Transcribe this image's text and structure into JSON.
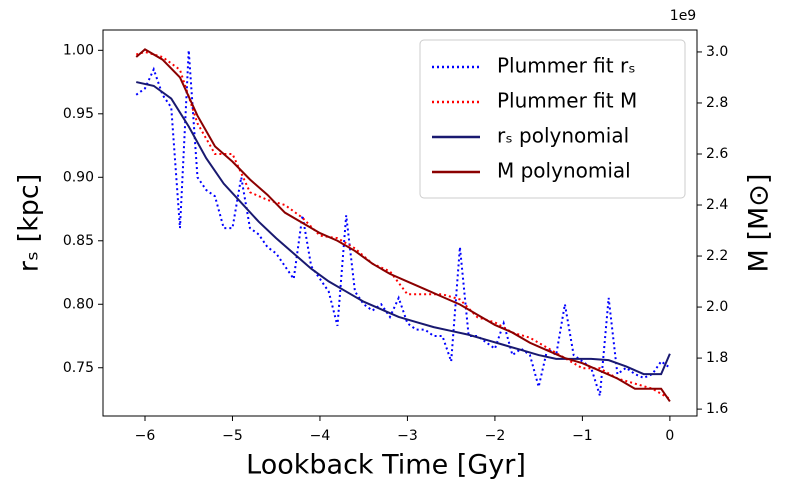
{
  "chart_data": {
    "type": "line",
    "xlabel": "Lookback Time [Gyr]",
    "ylabel": "rₛ [kpc]",
    "y2label": "M [M⊙]",
    "y2offset": "1e9",
    "xlim": [
      -6.48,
      0.31
    ],
    "ylim": [
      0.712,
      1.016
    ],
    "y2lim": [
      1.573,
      3.086
    ],
    "xticks": [
      {
        "value": -6,
        "label": "−6"
      },
      {
        "value": -5,
        "label": "−5"
      },
      {
        "value": -4,
        "label": "−4"
      },
      {
        "value": -3,
        "label": "−3"
      },
      {
        "value": -2,
        "label": "−2"
      },
      {
        "value": -1,
        "label": "−1"
      },
      0
    ],
    "yticks": [
      0.75,
      {
        "value": 0.8,
        "label": "0.80"
      },
      0.85,
      {
        "value": 0.9,
        "label": "0.90"
      },
      0.95,
      {
        "value": 1,
        "label": "1.00"
      }
    ],
    "y2ticks": [
      1.6,
      1.8,
      {
        "value": 2,
        "label": "2.0"
      },
      2.2,
      2.4,
      2.6,
      2.8,
      {
        "value": 3,
        "label": "3.0"
      }
    ],
    "legend": "upper right",
    "series": [
      {
        "name": "Plummer fit rₛ",
        "color": "#0000ff",
        "style": "dotted",
        "axis": "y",
        "x": [
          -6.1,
          -6.0,
          -5.9,
          -5.8,
          -5.7,
          -5.6,
          -5.5,
          -5.4,
          -5.3,
          -5.2,
          -5.1,
          -5.0,
          -4.9,
          -4.8,
          -4.7,
          -4.6,
          -4.5,
          -4.4,
          -4.3,
          -4.2,
          -4.1,
          -4.0,
          -3.9,
          -3.8,
          -3.7,
          -3.6,
          -3.5,
          -3.4,
          -3.3,
          -3.2,
          -3.1,
          -3.0,
          -2.9,
          -2.8,
          -2.7,
          -2.6,
          -2.5,
          -2.4,
          -2.3,
          -2.2,
          -2.1,
          -2.0,
          -1.9,
          -1.8,
          -1.7,
          -1.6,
          -1.5,
          -1.4,
          -1.3,
          -1.2,
          -1.1,
          -1.0,
          -0.9,
          -0.8,
          -0.7,
          -0.6,
          -0.5,
          -0.4,
          -0.3,
          -0.2,
          -0.1,
          0
        ],
        "values": [
          0.965,
          0.97,
          0.985,
          0.965,
          0.955,
          0.86,
          1.0,
          0.9,
          0.89,
          0.885,
          0.86,
          0.86,
          0.9,
          0.86,
          0.855,
          0.845,
          0.84,
          0.83,
          0.82,
          0.87,
          0.83,
          0.82,
          0.81,
          0.783,
          0.87,
          0.81,
          0.8,
          0.795,
          0.8,
          0.79,
          0.805,
          0.785,
          0.78,
          0.78,
          0.775,
          0.775,
          0.755,
          0.845,
          0.775,
          0.775,
          0.77,
          0.765,
          0.785,
          0.76,
          0.765,
          0.76,
          0.735,
          0.765,
          0.76,
          0.8,
          0.76,
          0.755,
          0.75,
          0.728,
          0.805,
          0.745,
          0.75,
          0.745,
          0.742,
          0.745,
          0.755,
          0.75
        ]
      },
      {
        "name": "Plummer fit M",
        "color": "#ff0000",
        "style": "dotted",
        "axis": "y2",
        "x": [
          -6.1,
          -6.0,
          -5.8,
          -5.6,
          -5.4,
          -5.2,
          -5.0,
          -4.8,
          -4.6,
          -4.4,
          -4.2,
          -4.0,
          -3.8,
          -3.6,
          -3.4,
          -3.2,
          -3.0,
          -2.8,
          -2.6,
          -2.4,
          -2.2,
          -2.0,
          -1.8,
          -1.6,
          -1.4,
          -1.2,
          -1.0,
          -0.8,
          -0.6,
          -0.4,
          -0.2,
          0
        ],
        "values": [
          2.99,
          3.0,
          2.98,
          2.93,
          2.72,
          2.6,
          2.6,
          2.45,
          2.42,
          2.4,
          2.35,
          2.28,
          2.27,
          2.23,
          2.17,
          2.14,
          2.05,
          2.05,
          2.05,
          2.03,
          1.96,
          1.94,
          1.9,
          1.88,
          1.84,
          1.8,
          1.76,
          1.76,
          1.72,
          1.7,
          1.68,
          1.64
        ]
      },
      {
        "name": "rₛ polynomial",
        "color": "#191970",
        "style": "solid",
        "axis": "y",
        "x": [
          -6.1,
          -5.9,
          -5.7,
          -5.5,
          -5.3,
          -5.1,
          -4.9,
          -4.7,
          -4.5,
          -4.3,
          -4.1,
          -3.9,
          -3.7,
          -3.5,
          -3.3,
          -3.1,
          -2.9,
          -2.7,
          -2.5,
          -2.3,
          -2.1,
          -1.9,
          -1.7,
          -1.5,
          -1.3,
          -1.1,
          -0.9,
          -0.7,
          -0.5,
          -0.3,
          -0.1,
          0
        ],
        "values": [
          0.975,
          0.972,
          0.962,
          0.94,
          0.915,
          0.895,
          0.88,
          0.865,
          0.852,
          0.84,
          0.828,
          0.818,
          0.81,
          0.802,
          0.796,
          0.79,
          0.786,
          0.782,
          0.779,
          0.776,
          0.772,
          0.768,
          0.764,
          0.76,
          0.757,
          0.757,
          0.757,
          0.756,
          0.751,
          0.745,
          0.745,
          0.761
        ]
      },
      {
        "name": "M polynomial",
        "color": "#8b0000",
        "style": "solid",
        "axis": "y2",
        "x": [
          -6.1,
          -6.0,
          -5.8,
          -5.6,
          -5.4,
          -5.2,
          -5.0,
          -4.8,
          -4.6,
          -4.4,
          -4.2,
          -4.0,
          -3.8,
          -3.6,
          -3.4,
          -3.2,
          -3.0,
          -2.8,
          -2.6,
          -2.4,
          -2.2,
          -2.0,
          -1.8,
          -1.6,
          -1.4,
          -1.2,
          -1.0,
          -0.8,
          -0.6,
          -0.4,
          -0.2,
          -0.1,
          0
        ],
        "values": [
          2.98,
          3.01,
          2.97,
          2.9,
          2.75,
          2.63,
          2.57,
          2.5,
          2.44,
          2.37,
          2.33,
          2.29,
          2.26,
          2.22,
          2.17,
          2.13,
          2.1,
          2.07,
          2.04,
          2.01,
          1.97,
          1.93,
          1.9,
          1.86,
          1.83,
          1.8,
          1.78,
          1.75,
          1.72,
          1.68,
          1.68,
          1.68,
          1.63
        ]
      }
    ]
  }
}
